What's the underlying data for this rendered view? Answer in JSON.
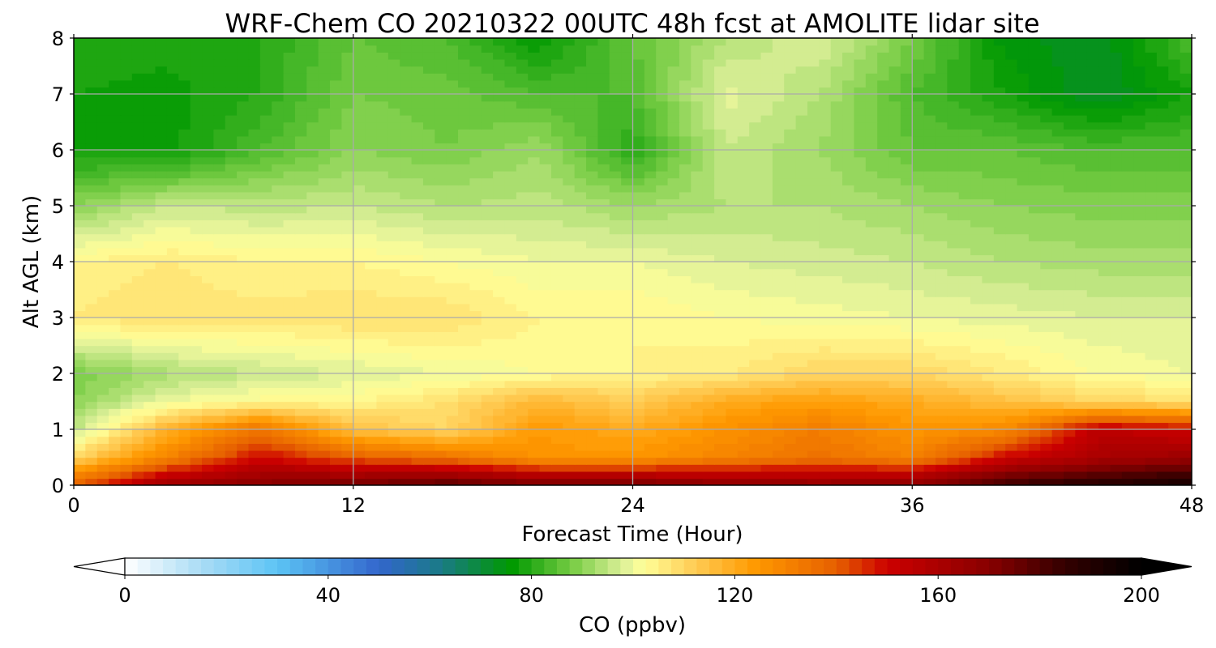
{
  "chart_data": {
    "type": "heatmap",
    "title": "WRF-Chem CO  20210322 00UTC 48h fcst at AMOLITE lidar site",
    "xlabel": "Forecast Time (Hour)",
    "ylabel": "Alt AGL (km)",
    "xlim": [
      0,
      48
    ],
    "ylim": [
      0,
      8
    ],
    "xticks": [
      0,
      12,
      24,
      36,
      48
    ],
    "yticks": [
      0,
      1,
      2,
      3,
      4,
      5,
      6,
      7,
      8
    ],
    "grid": true,
    "x": [
      0,
      4,
      8,
      12,
      16,
      20,
      24,
      28,
      32,
      36,
      40,
      44,
      48
    ],
    "y": [
      0,
      0.5,
      1,
      1.5,
      2,
      3,
      4,
      5,
      6,
      7,
      8
    ],
    "z": [
      [
        140,
        165,
        170,
        175,
        180,
        175,
        175,
        170,
        168,
        170,
        185,
        190,
        195
      ],
      [
        110,
        130,
        150,
        140,
        135,
        125,
        125,
        130,
        135,
        130,
        150,
        160,
        165
      ],
      [
        95,
        118,
        135,
        115,
        110,
        124,
        120,
        126,
        132,
        125,
        128,
        155,
        150
      ],
      [
        90,
        100,
        103,
        104,
        108,
        117,
        112,
        120,
        123,
        120,
        115,
        110,
        108
      ],
      [
        88,
        93,
        96,
        98,
        100,
        102,
        104,
        106,
        110,
        110,
        106,
        102,
        100
      ],
      [
        106,
        108,
        107,
        108,
        108,
        104,
        104,
        102,
        101,
        100,
        99,
        98,
        98
      ],
      [
        104,
        106,
        104,
        104,
        102,
        100,
        100,
        98,
        97,
        96,
        94,
        93,
        93
      ],
      [
        90,
        96,
        95,
        96,
        94,
        95,
        92,
        94,
        94,
        92,
        90,
        89,
        89
      ],
      [
        78,
        77,
        84,
        90,
        88,
        92,
        80,
        96,
        92,
        86,
        86,
        84,
        84
      ],
      [
        78,
        77,
        80,
        88,
        87,
        84,
        84,
        99,
        94,
        84,
        78,
        72,
        78
      ],
      [
        80,
        79,
        80,
        86,
        84,
        76,
        86,
        94,
        98,
        88,
        75,
        72,
        84
      ]
    ],
    "colorbar": {
      "label": "CO  (ppbv)",
      "ticks": [
        0,
        40,
        80,
        120,
        160,
        200
      ],
      "range": [
        0,
        200
      ],
      "extend": "both",
      "stops": [
        {
          "v": 0,
          "c": "#ffffff"
        },
        {
          "v": 15,
          "c": "#aadcf5"
        },
        {
          "v": 30,
          "c": "#5cc4f5"
        },
        {
          "v": 50,
          "c": "#3366cc"
        },
        {
          "v": 62,
          "c": "#1a7a88"
        },
        {
          "v": 76,
          "c": "#009900"
        },
        {
          "v": 88,
          "c": "#77cc44"
        },
        {
          "v": 98,
          "c": "#ddf099"
        },
        {
          "v": 102,
          "c": "#ffff99"
        },
        {
          "v": 112,
          "c": "#ffcc55"
        },
        {
          "v": 124,
          "c": "#ff9900"
        },
        {
          "v": 140,
          "c": "#e66000"
        },
        {
          "v": 150,
          "c": "#cc0000"
        },
        {
          "v": 170,
          "c": "#880000"
        },
        {
          "v": 185,
          "c": "#330000"
        },
        {
          "v": 200,
          "c": "#000000"
        }
      ]
    }
  }
}
